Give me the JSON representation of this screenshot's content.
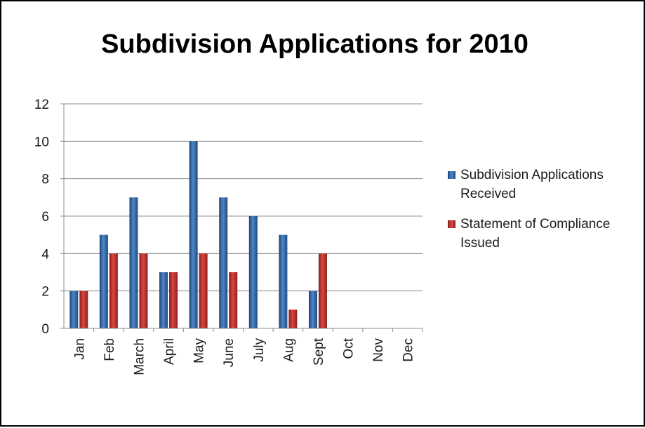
{
  "chart_data": {
    "type": "bar",
    "title": "Subdivision Applications for 2010",
    "categories": [
      "Jan",
      "Feb",
      "March",
      "April",
      "May",
      "June",
      "July",
      "Aug",
      "Sept",
      "Oct",
      "Nov",
      "Dec"
    ],
    "series": [
      {
        "name": "Subdivision Applications Received",
        "values": [
          2,
          5,
          7,
          3,
          10,
          7,
          6,
          5,
          2,
          0,
          0,
          0
        ],
        "color": "#2e5f9c"
      },
      {
        "name": "Statement of Compliance Issued",
        "values": [
          2,
          4,
          4,
          3,
          4,
          3,
          0,
          1,
          4,
          0,
          0,
          0
        ],
        "color": "#b12b2b"
      }
    ],
    "xlabel": "",
    "ylabel": "",
    "ylim": [
      0,
      12
    ],
    "yticks": [
      "0",
      "2",
      "4",
      "6",
      "8",
      "10",
      "12"
    ],
    "grid": true,
    "legend_position": "right"
  }
}
